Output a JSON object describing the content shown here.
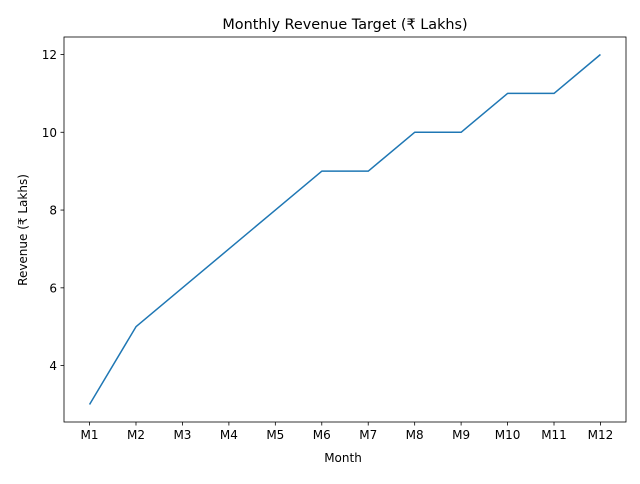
{
  "chart_data": {
    "type": "line",
    "title": "Monthly Revenue Target (₹ Lakhs)",
    "xlabel": "Month",
    "ylabel": "Revenue (₹ Lakhs)",
    "categories": [
      "M1",
      "M2",
      "M3",
      "M4",
      "M5",
      "M6",
      "M7",
      "M8",
      "M9",
      "M10",
      "M11",
      "M12"
    ],
    "values": [
      3,
      5,
      6,
      7,
      8,
      9,
      9,
      10,
      10,
      11,
      11,
      12
    ],
    "yticks": [
      4,
      6,
      8,
      10,
      12
    ],
    "ylim": [
      2.55,
      12.45
    ],
    "grid": false,
    "color": "#1f77b4"
  }
}
